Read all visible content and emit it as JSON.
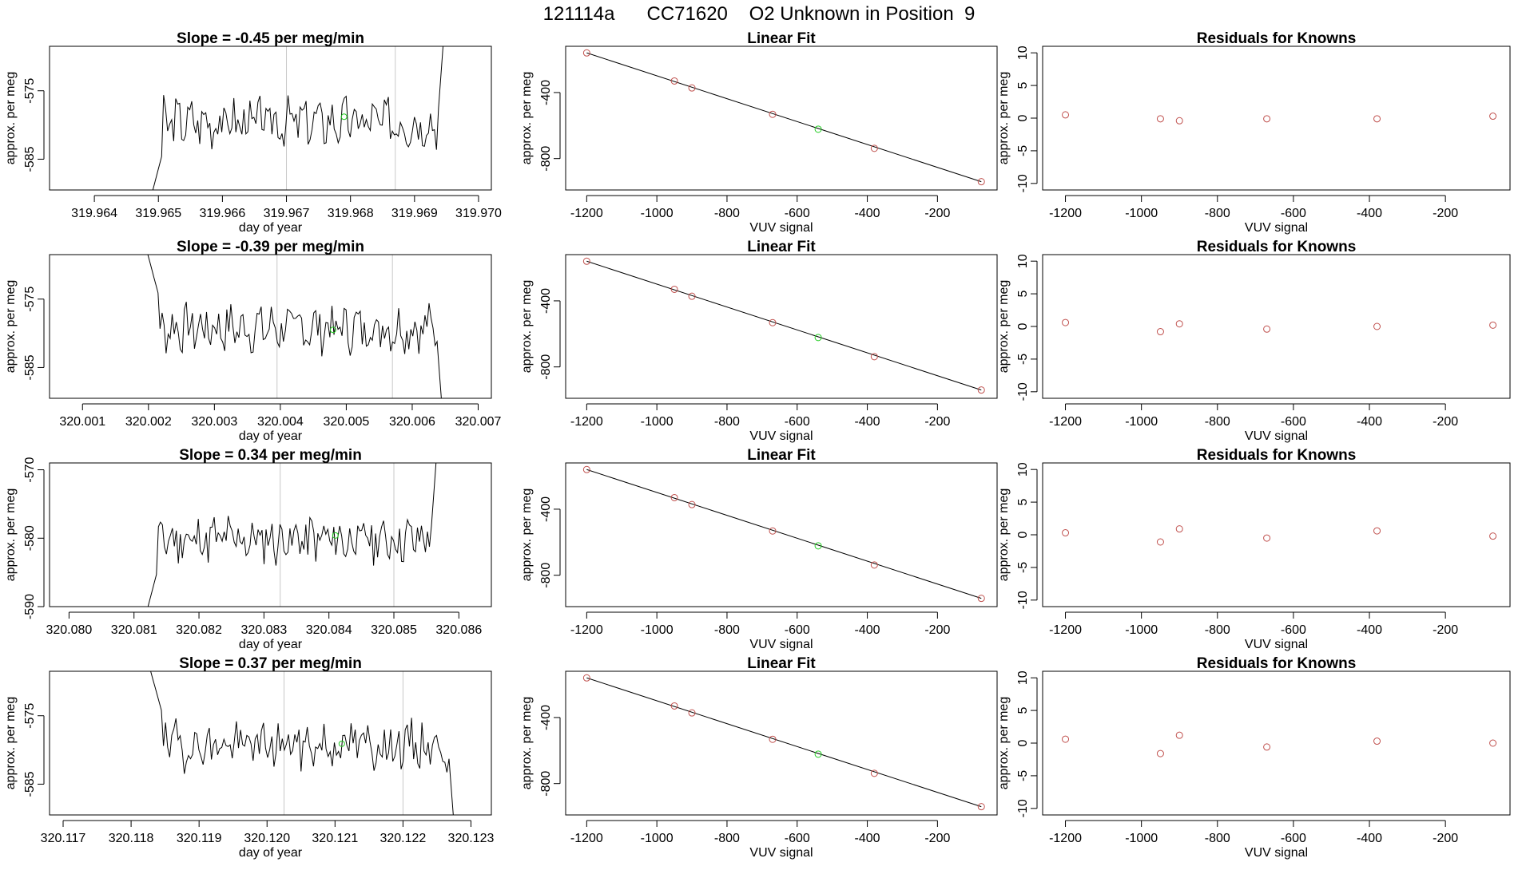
{
  "figure": {
    "title": "121114a      CC71620    O2 Unknown in Position  9"
  },
  "chart_data": [
    {
      "type": "line",
      "panel": "time-series",
      "row": 0,
      "title": "Slope =  -0.45  per meg/min",
      "xlabel": "day of year",
      "ylabel": "approx. per meg",
      "xlim": [
        319.9633,
        319.9702
      ],
      "ylim": [
        -589.5,
        -568.5
      ],
      "xticks": [
        "319.964",
        "319.965",
        "319.966",
        "319.967",
        "319.968",
        "319.969",
        "319.970"
      ],
      "xtick_values": [
        319.964,
        319.965,
        319.966,
        319.967,
        319.968,
        319.969,
        319.97
      ],
      "yticks": [
        "-585",
        "-575"
      ],
      "ytick_values": [
        -585,
        -575
      ],
      "vlines": [
        319.967,
        319.9687
      ],
      "highlight_point": {
        "x": 319.9679,
        "y": -578.8
      },
      "start_x": 319.9648,
      "end_x": 319.9695,
      "seed": 3,
      "mean": -579.5,
      "ramp": "rise"
    },
    {
      "type": "scatter",
      "panel": "linear-fit",
      "row": 0,
      "title": "Linear Fit",
      "xlabel": "VUV signal",
      "ylabel": "approx. per meg",
      "xlim": [
        -1260,
        -30
      ],
      "ylim": [
        -990,
        -120
      ],
      "xticks": [
        "-1200",
        "-1000",
        "-800",
        "-600",
        "-400",
        "-200"
      ],
      "xtick_values": [
        -1200,
        -1000,
        -800,
        -600,
        -400,
        -200
      ],
      "yticks": [
        "-800",
        "-400"
      ],
      "ytick_values": [
        -800,
        -400
      ],
      "fit_line": [
        [
          -1200,
          -160
        ],
        [
          -75,
          -940
        ]
      ],
      "points": {
        "x": [
          -1200,
          -950,
          -900,
          -670,
          -380,
          -75
        ],
        "y": [
          -160,
          -330,
          -372,
          -532,
          -738,
          -940
        ]
      },
      "unknown_point": {
        "x": -540,
        "y": -622
      }
    },
    {
      "type": "scatter",
      "panel": "residuals",
      "row": 0,
      "title": "Residuals for Knowns",
      "xlabel": "VUV signal",
      "ylabel": "approx. per meg",
      "xlim": [
        -1260,
        -30
      ],
      "ylim": [
        -11,
        11
      ],
      "xticks": [
        "-1200",
        "-1000",
        "-800",
        "-600",
        "-400",
        "-200"
      ],
      "xtick_values": [
        -1200,
        -1000,
        -800,
        -600,
        -400,
        -200
      ],
      "yticks": [
        "-10",
        "-5",
        "0",
        "5",
        "10"
      ],
      "ytick_values": [
        -10,
        -5,
        0,
        5,
        10
      ],
      "points": {
        "x": [
          -1200,
          -950,
          -900,
          -670,
          -380,
          -75
        ],
        "y": [
          0.5,
          -0.1,
          -0.4,
          -0.1,
          -0.1,
          0.3
        ]
      }
    },
    {
      "type": "line",
      "panel": "time-series",
      "row": 1,
      "title": "Slope =  -0.39  per meg/min",
      "xlabel": "day of year",
      "ylabel": "approx. per meg",
      "xlim": [
        320.0005,
        320.0072
      ],
      "ylim": [
        -589.5,
        -568.5
      ],
      "xticks": [
        "320.001",
        "320.002",
        "320.003",
        "320.004",
        "320.005",
        "320.006",
        "320.007"
      ],
      "xtick_values": [
        320.001,
        320.002,
        320.003,
        320.004,
        320.005,
        320.006,
        320.007
      ],
      "yticks": [
        "-585",
        "-575"
      ],
      "ytick_values": [
        -585,
        -575
      ],
      "vlines": [
        320.00395,
        320.0057
      ],
      "highlight_point": {
        "x": 320.0048,
        "y": -579.5
      },
      "start_x": 320.0019,
      "end_x": 320.0065,
      "seed": 7,
      "mean": -579.2,
      "ramp": "fall"
    },
    {
      "type": "scatter",
      "panel": "linear-fit",
      "row": 1,
      "title": "Linear Fit",
      "xlabel": "VUV signal",
      "ylabel": "approx. per meg",
      "xlim": [
        -1260,
        -30
      ],
      "ylim": [
        -990,
        -120
      ],
      "xticks": [
        "-1200",
        "-1000",
        "-800",
        "-600",
        "-400",
        "-200"
      ],
      "xtick_values": [
        -1200,
        -1000,
        -800,
        -600,
        -400,
        -200
      ],
      "yticks": [
        "-800",
        "-400"
      ],
      "ytick_values": [
        -800,
        -400
      ],
      "fit_line": [
        [
          -1200,
          -160
        ],
        [
          -75,
          -940
        ]
      ],
      "points": {
        "x": [
          -1200,
          -950,
          -900,
          -670,
          -380,
          -75
        ],
        "y": [
          -160,
          -330,
          -372,
          -532,
          -738,
          -940
        ]
      },
      "unknown_point": {
        "x": -540,
        "y": -622
      }
    },
    {
      "type": "scatter",
      "panel": "residuals",
      "row": 1,
      "title": "Residuals for Knowns",
      "xlabel": "VUV signal",
      "ylabel": "approx. per meg",
      "xlim": [
        -1260,
        -30
      ],
      "ylim": [
        -11,
        11
      ],
      "xticks": [
        "-1200",
        "-1000",
        "-800",
        "-600",
        "-400",
        "-200"
      ],
      "xtick_values": [
        -1200,
        -1000,
        -800,
        -600,
        -400,
        -200
      ],
      "yticks": [
        "-10",
        "-5",
        "0",
        "5",
        "10"
      ],
      "ytick_values": [
        -10,
        -5,
        0,
        5,
        10
      ],
      "points": {
        "x": [
          -1200,
          -950,
          -900,
          -670,
          -380,
          -75
        ],
        "y": [
          0.6,
          -0.8,
          0.4,
          -0.4,
          0.0,
          0.2
        ]
      }
    },
    {
      "type": "line",
      "panel": "time-series",
      "row": 2,
      "title": "Slope =  0.34  per meg/min",
      "xlabel": "day of year",
      "ylabel": "approx. per meg",
      "xlim": [
        320.0797,
        320.0865
      ],
      "ylim": [
        -590,
        -569
      ],
      "xticks": [
        "320.080",
        "320.081",
        "320.082",
        "320.083",
        "320.084",
        "320.085",
        "320.086"
      ],
      "xtick_values": [
        320.08,
        320.081,
        320.082,
        320.083,
        320.084,
        320.085,
        320.086
      ],
      "yticks": [
        "-590",
        "-580",
        "-570"
      ],
      "ytick_values": [
        -590,
        -580,
        -570
      ],
      "vlines": [
        320.08325,
        320.085
      ],
      "highlight_point": {
        "x": 320.0841,
        "y": -579.6
      },
      "start_x": 320.0811,
      "end_x": 320.0857,
      "seed": 11,
      "mean": -580.2,
      "ramp": "rise"
    },
    {
      "type": "scatter",
      "panel": "linear-fit",
      "row": 2,
      "title": "Linear Fit",
      "xlabel": "VUV signal",
      "ylabel": "approx. per meg",
      "xlim": [
        -1260,
        -30
      ],
      "ylim": [
        -990,
        -120
      ],
      "xticks": [
        "-1200",
        "-1000",
        "-800",
        "-600",
        "-400",
        "-200"
      ],
      "xtick_values": [
        -1200,
        -1000,
        -800,
        -600,
        -400,
        -200
      ],
      "yticks": [
        "-800",
        "-400"
      ],
      "ytick_values": [
        -800,
        -400
      ],
      "fit_line": [
        [
          -1200,
          -160
        ],
        [
          -75,
          -940
        ]
      ],
      "points": {
        "x": [
          -1200,
          -950,
          -900,
          -670,
          -380,
          -75
        ],
        "y": [
          -160,
          -330,
          -372,
          -532,
          -738,
          -940
        ]
      },
      "unknown_point": {
        "x": -540,
        "y": -622
      }
    },
    {
      "type": "scatter",
      "panel": "residuals",
      "row": 2,
      "title": "Residuals for Knowns",
      "xlabel": "VUV signal",
      "ylabel": "approx. per meg",
      "xlim": [
        -1260,
        -30
      ],
      "ylim": [
        -11,
        11
      ],
      "xticks": [
        "-1200",
        "-1000",
        "-800",
        "-600",
        "-400",
        "-200"
      ],
      "xtick_values": [
        -1200,
        -1000,
        -800,
        -600,
        -400,
        -200
      ],
      "yticks": [
        "-10",
        "-5",
        "0",
        "5",
        "10"
      ],
      "ytick_values": [
        -10,
        -5,
        0,
        5,
        10
      ],
      "points": {
        "x": [
          -1200,
          -950,
          -900,
          -670,
          -380,
          -75
        ],
        "y": [
          0.3,
          -1.1,
          0.9,
          -0.5,
          0.6,
          -0.2
        ]
      }
    },
    {
      "type": "line",
      "panel": "time-series",
      "row": 3,
      "title": "Slope =  0.37  per meg/min",
      "xlabel": "day of year",
      "ylabel": "approx. per meg",
      "xlim": [
        320.1168,
        320.1233
      ],
      "ylim": [
        -589.5,
        -568.5
      ],
      "xticks": [
        "320.117",
        "320.118",
        "320.119",
        "320.120",
        "320.121",
        "320.122",
        "320.123"
      ],
      "xtick_values": [
        320.117,
        320.118,
        320.119,
        320.12,
        320.121,
        320.122,
        320.123
      ],
      "yticks": [
        "-585",
        "-575"
      ],
      "ytick_values": [
        -585,
        -575
      ],
      "vlines": [
        320.12025,
        320.122
      ],
      "highlight_point": {
        "x": 320.1211,
        "y": -579.1
      },
      "start_x": 320.1182,
      "end_x": 320.1228,
      "seed": 19,
      "mean": -579.3,
      "ramp": "fall"
    },
    {
      "type": "scatter",
      "panel": "linear-fit",
      "row": 3,
      "title": "Linear Fit",
      "xlabel": "VUV signal",
      "ylabel": "approx. per meg",
      "xlim": [
        -1260,
        -30
      ],
      "ylim": [
        -990,
        -120
      ],
      "xticks": [
        "-1200",
        "-1000",
        "-800",
        "-600",
        "-400",
        "-200"
      ],
      "xtick_values": [
        -1200,
        -1000,
        -800,
        -600,
        -400,
        -200
      ],
      "yticks": [
        "-800",
        "-400"
      ],
      "ytick_values": [
        -800,
        -400
      ],
      "fit_line": [
        [
          -1200,
          -160
        ],
        [
          -75,
          -940
        ]
      ],
      "points": {
        "x": [
          -1200,
          -950,
          -900,
          -670,
          -380,
          -75
        ],
        "y": [
          -160,
          -330,
          -372,
          -532,
          -738,
          -940
        ]
      },
      "unknown_point": {
        "x": -540,
        "y": -622
      }
    },
    {
      "type": "scatter",
      "panel": "residuals",
      "row": 3,
      "title": "Residuals for Knowns",
      "xlabel": "VUV signal",
      "ylabel": "approx. per meg",
      "xlim": [
        -1260,
        -30
      ],
      "ylim": [
        -11,
        11
      ],
      "xticks": [
        "-1200",
        "-1000",
        "-800",
        "-600",
        "-400",
        "-200"
      ],
      "xtick_values": [
        -1200,
        -1000,
        -800,
        -600,
        -400,
        -200
      ],
      "yticks": [
        "-10",
        "-5",
        "0",
        "5",
        "10"
      ],
      "ytick_values": [
        -10,
        -5,
        0,
        5,
        10
      ],
      "points": {
        "x": [
          -1200,
          -950,
          -900,
          -670,
          -380,
          -75
        ],
        "y": [
          0.6,
          -1.6,
          1.2,
          -0.6,
          0.3,
          0.0
        ]
      }
    }
  ],
  "colors": {
    "series_line": "#000000",
    "known_points": "#c0504d",
    "unknown_point": "#22cc22",
    "vlines": "#c8c8c8",
    "frame": "#000000"
  }
}
